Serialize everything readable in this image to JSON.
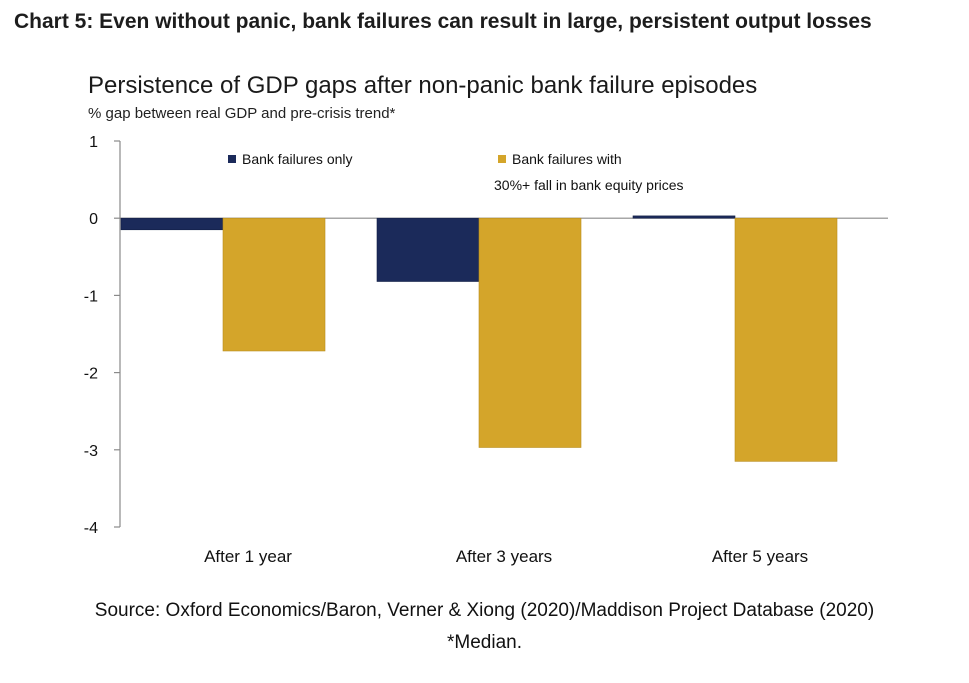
{
  "header": "Chart 5: Even without panic, bank failures can result in large, persistent output losses",
  "source": "Source: Oxford Economics/Baron, Verner & Xiong (2020)/Maddison Project Database (2020)",
  "footnote": "*Median.",
  "chart_data": {
    "type": "bar",
    "title": "Persistence of GDP gaps after non-panic bank failure episodes",
    "subtitle": "% gap between real GDP and pre-crisis trend*",
    "categories": [
      "After 1 year",
      "After 3 years",
      "After 5 years"
    ],
    "series": [
      {
        "name": "Bank failures only",
        "values": [
          -0.15,
          -0.82,
          0.03
        ],
        "color": "#1b2a5a"
      },
      {
        "name": "Bank failures with 30%+ fall in bank equity prices",
        "values": [
          -1.72,
          -2.97,
          -3.15
        ],
        "color": "#d4a52a"
      }
    ],
    "legend_lines": [
      [
        "Bank failures only"
      ],
      [
        "Bank failures with",
        "30%+ fall in bank equity prices"
      ]
    ],
    "ylim": [
      -4,
      1
    ],
    "yticks": [
      1,
      0,
      -1,
      -2,
      -3,
      -4
    ],
    "ylabel": "",
    "xlabel": "",
    "grid": false,
    "legend_position": "top"
  }
}
